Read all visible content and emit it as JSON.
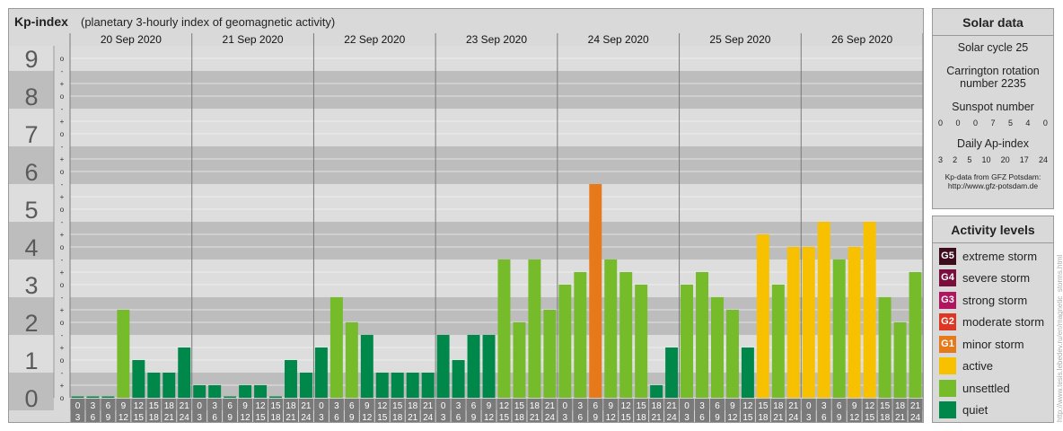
{
  "header": {
    "title": "Kp-index",
    "subtitle": "(planetary 3-hourly index of geomagnetic activity)"
  },
  "chart_data": {
    "type": "bar",
    "ylim": [
      0,
      9
    ],
    "y_ticks": [
      "0",
      "1",
      "2",
      "3",
      "4",
      "5",
      "6",
      "7",
      "8",
      "9"
    ],
    "minor_ticks": [
      "o",
      "+",
      "-",
      "o",
      "+",
      "-",
      "o",
      "+",
      "-",
      "o",
      "+",
      "-",
      "o",
      "+",
      "-",
      "o",
      "+",
      "-",
      "o",
      "+",
      "-",
      "o",
      "+",
      "-",
      "o",
      "+",
      "-",
      "o"
    ],
    "days": [
      "20 Sep 2020",
      "21 Sep 2020",
      "22 Sep 2020",
      "23 Sep 2020",
      "24 Sep 2020",
      "25 Sep 2020",
      "26 Sep 2020"
    ],
    "intervals": [
      {
        "start": "0",
        "end": "3"
      },
      {
        "start": "3",
        "end": "6"
      },
      {
        "start": "6",
        "end": "9"
      },
      {
        "start": "9",
        "end": "12"
      },
      {
        "start": "12",
        "end": "15"
      },
      {
        "start": "15",
        "end": "18"
      },
      {
        "start": "18",
        "end": "21"
      },
      {
        "start": "21",
        "end": "24"
      }
    ],
    "values": [
      0,
      0,
      0,
      2.333,
      1,
      0.667,
      0.667,
      1.333,
      0.333,
      0.333,
      0,
      0.333,
      0.333,
      0,
      1,
      0.667,
      1.333,
      2.667,
      2,
      1.667,
      0.667,
      0.667,
      0.667,
      0.667,
      1.667,
      1,
      1.667,
      1.667,
      3.667,
      2,
      3.667,
      2.333,
      3,
      3.333,
      5.667,
      3.667,
      3.333,
      3,
      0.333,
      1.333,
      3,
      3.333,
      2.667,
      2.333,
      1.333,
      4.333,
      3,
      4,
      4,
      4.667,
      3.667,
      4,
      4.667,
      2.667,
      2,
      3.333
    ],
    "colors": {
      "quiet": "#00884a",
      "unsettled": "#75bb2a",
      "active": "#f8c100",
      "G1": "#e67a1a",
      "G2": "#dd3622",
      "G3": "#b0155f",
      "G4": "#7a0e3e",
      "G5": "#3d0d1d"
    },
    "grid": true
  },
  "solar_data": {
    "title": "Solar data",
    "solar_cycle": "Solar cycle 25",
    "carrington_1": "Carrington rotation",
    "carrington_2": "number 2235",
    "sunspot_label": "Sunspot number",
    "sunspot_values": [
      "0",
      "0",
      "0",
      "7",
      "5",
      "4",
      "0"
    ],
    "ap_label": "Daily Ap-index",
    "ap_values": [
      "3",
      "2",
      "5",
      "10",
      "20",
      "17",
      "24"
    ],
    "note_1": "Kp-data from GFZ Potsdam:",
    "note_2": "http://www.gfz-potsdam.de"
  },
  "legend": {
    "title": "Activity levels",
    "items": [
      {
        "badge": "G5",
        "label": "extreme storm",
        "color": "#3d0d1d"
      },
      {
        "badge": "G4",
        "label": "severe storm",
        "color": "#7a0e3e"
      },
      {
        "badge": "G3",
        "label": "strong storm",
        "color": "#b0155f"
      },
      {
        "badge": "G2",
        "label": "moderate storm",
        "color": "#dd3622"
      },
      {
        "badge": "G1",
        "label": "minor storm",
        "color": "#e67a1a"
      },
      {
        "badge": "",
        "label": "active",
        "color": "#f8c100"
      },
      {
        "badge": "",
        "label": "unsettled",
        "color": "#75bb2a"
      },
      {
        "badge": "",
        "label": "quiet",
        "color": "#00884a"
      }
    ]
  },
  "credit": "http://www.tesis.lebedev.ru/en/magnetic_storms.html"
}
